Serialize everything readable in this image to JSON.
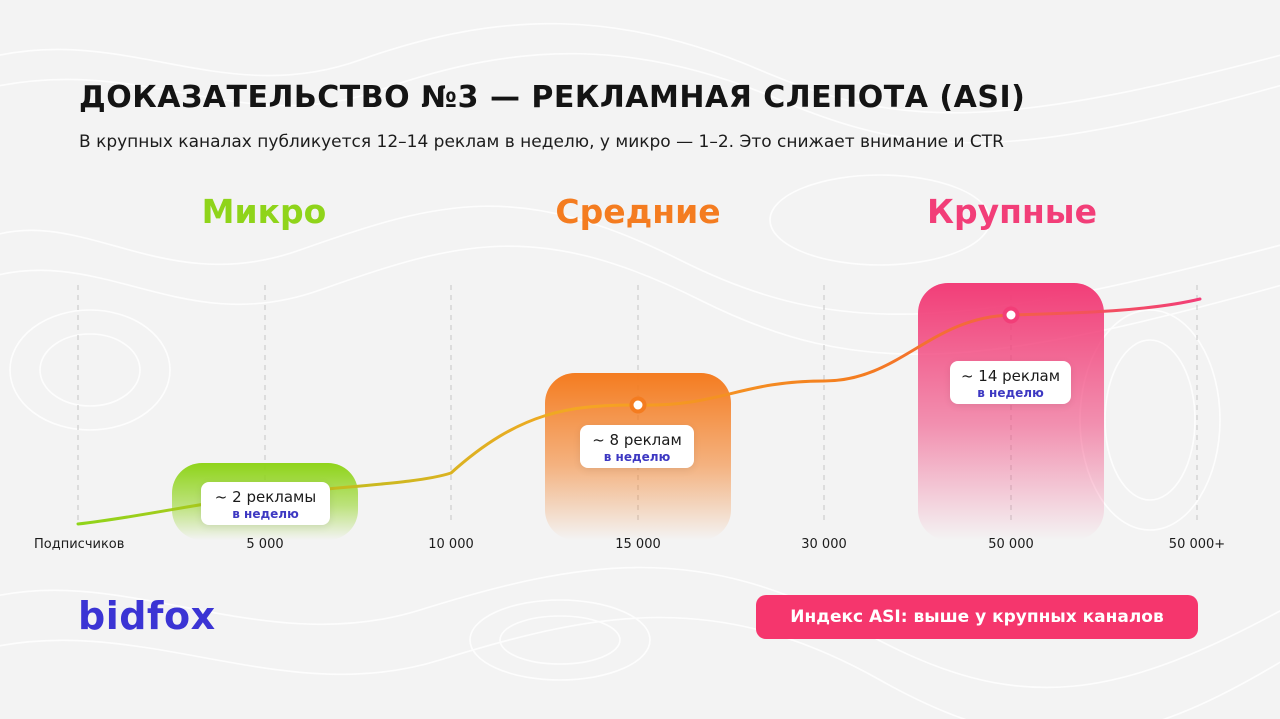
{
  "title": "ДОКАЗАТЕЛЬСТВО №3 — РЕКЛАМНАЯ СЛЕПОТА (ASI)",
  "subtitle": "В крупных каналах публикуется 12–14 реклам в неделю, у микро — 1–2. Это снижает внимание и CTR",
  "logo": "bidfox",
  "badge": "Индекс ASI: выше у крупных каналов",
  "colors": {
    "micro": "#8fd41a",
    "medium": "#f47c20",
    "large": "#f23e78",
    "brand": "#3b34d4",
    "badge": "#f5366d"
  },
  "chart_data": {
    "type": "line",
    "xlabel": "Подписчиков",
    "x_ticks": [
      "5 000",
      "10 000",
      "15 000",
      "30 000",
      "50 000",
      "50 000+"
    ],
    "categories": [
      {
        "name": "Микро",
        "label_main": "~ 2 рекламы",
        "label_sub": "в неделю",
        "tick_index": 0,
        "ads_per_week": 2
      },
      {
        "name": "Средние",
        "label_main": "~ 8 реклам",
        "label_sub": "в неделю",
        "tick_index": 2,
        "ads_per_week": 8
      },
      {
        "name": "Крупные",
        "label_main": "~ 14 реклам",
        "label_sub": "в неделю",
        "tick_index": 4,
        "ads_per_week": 14
      }
    ],
    "grid": "vertical dashed",
    "legend": "none"
  }
}
